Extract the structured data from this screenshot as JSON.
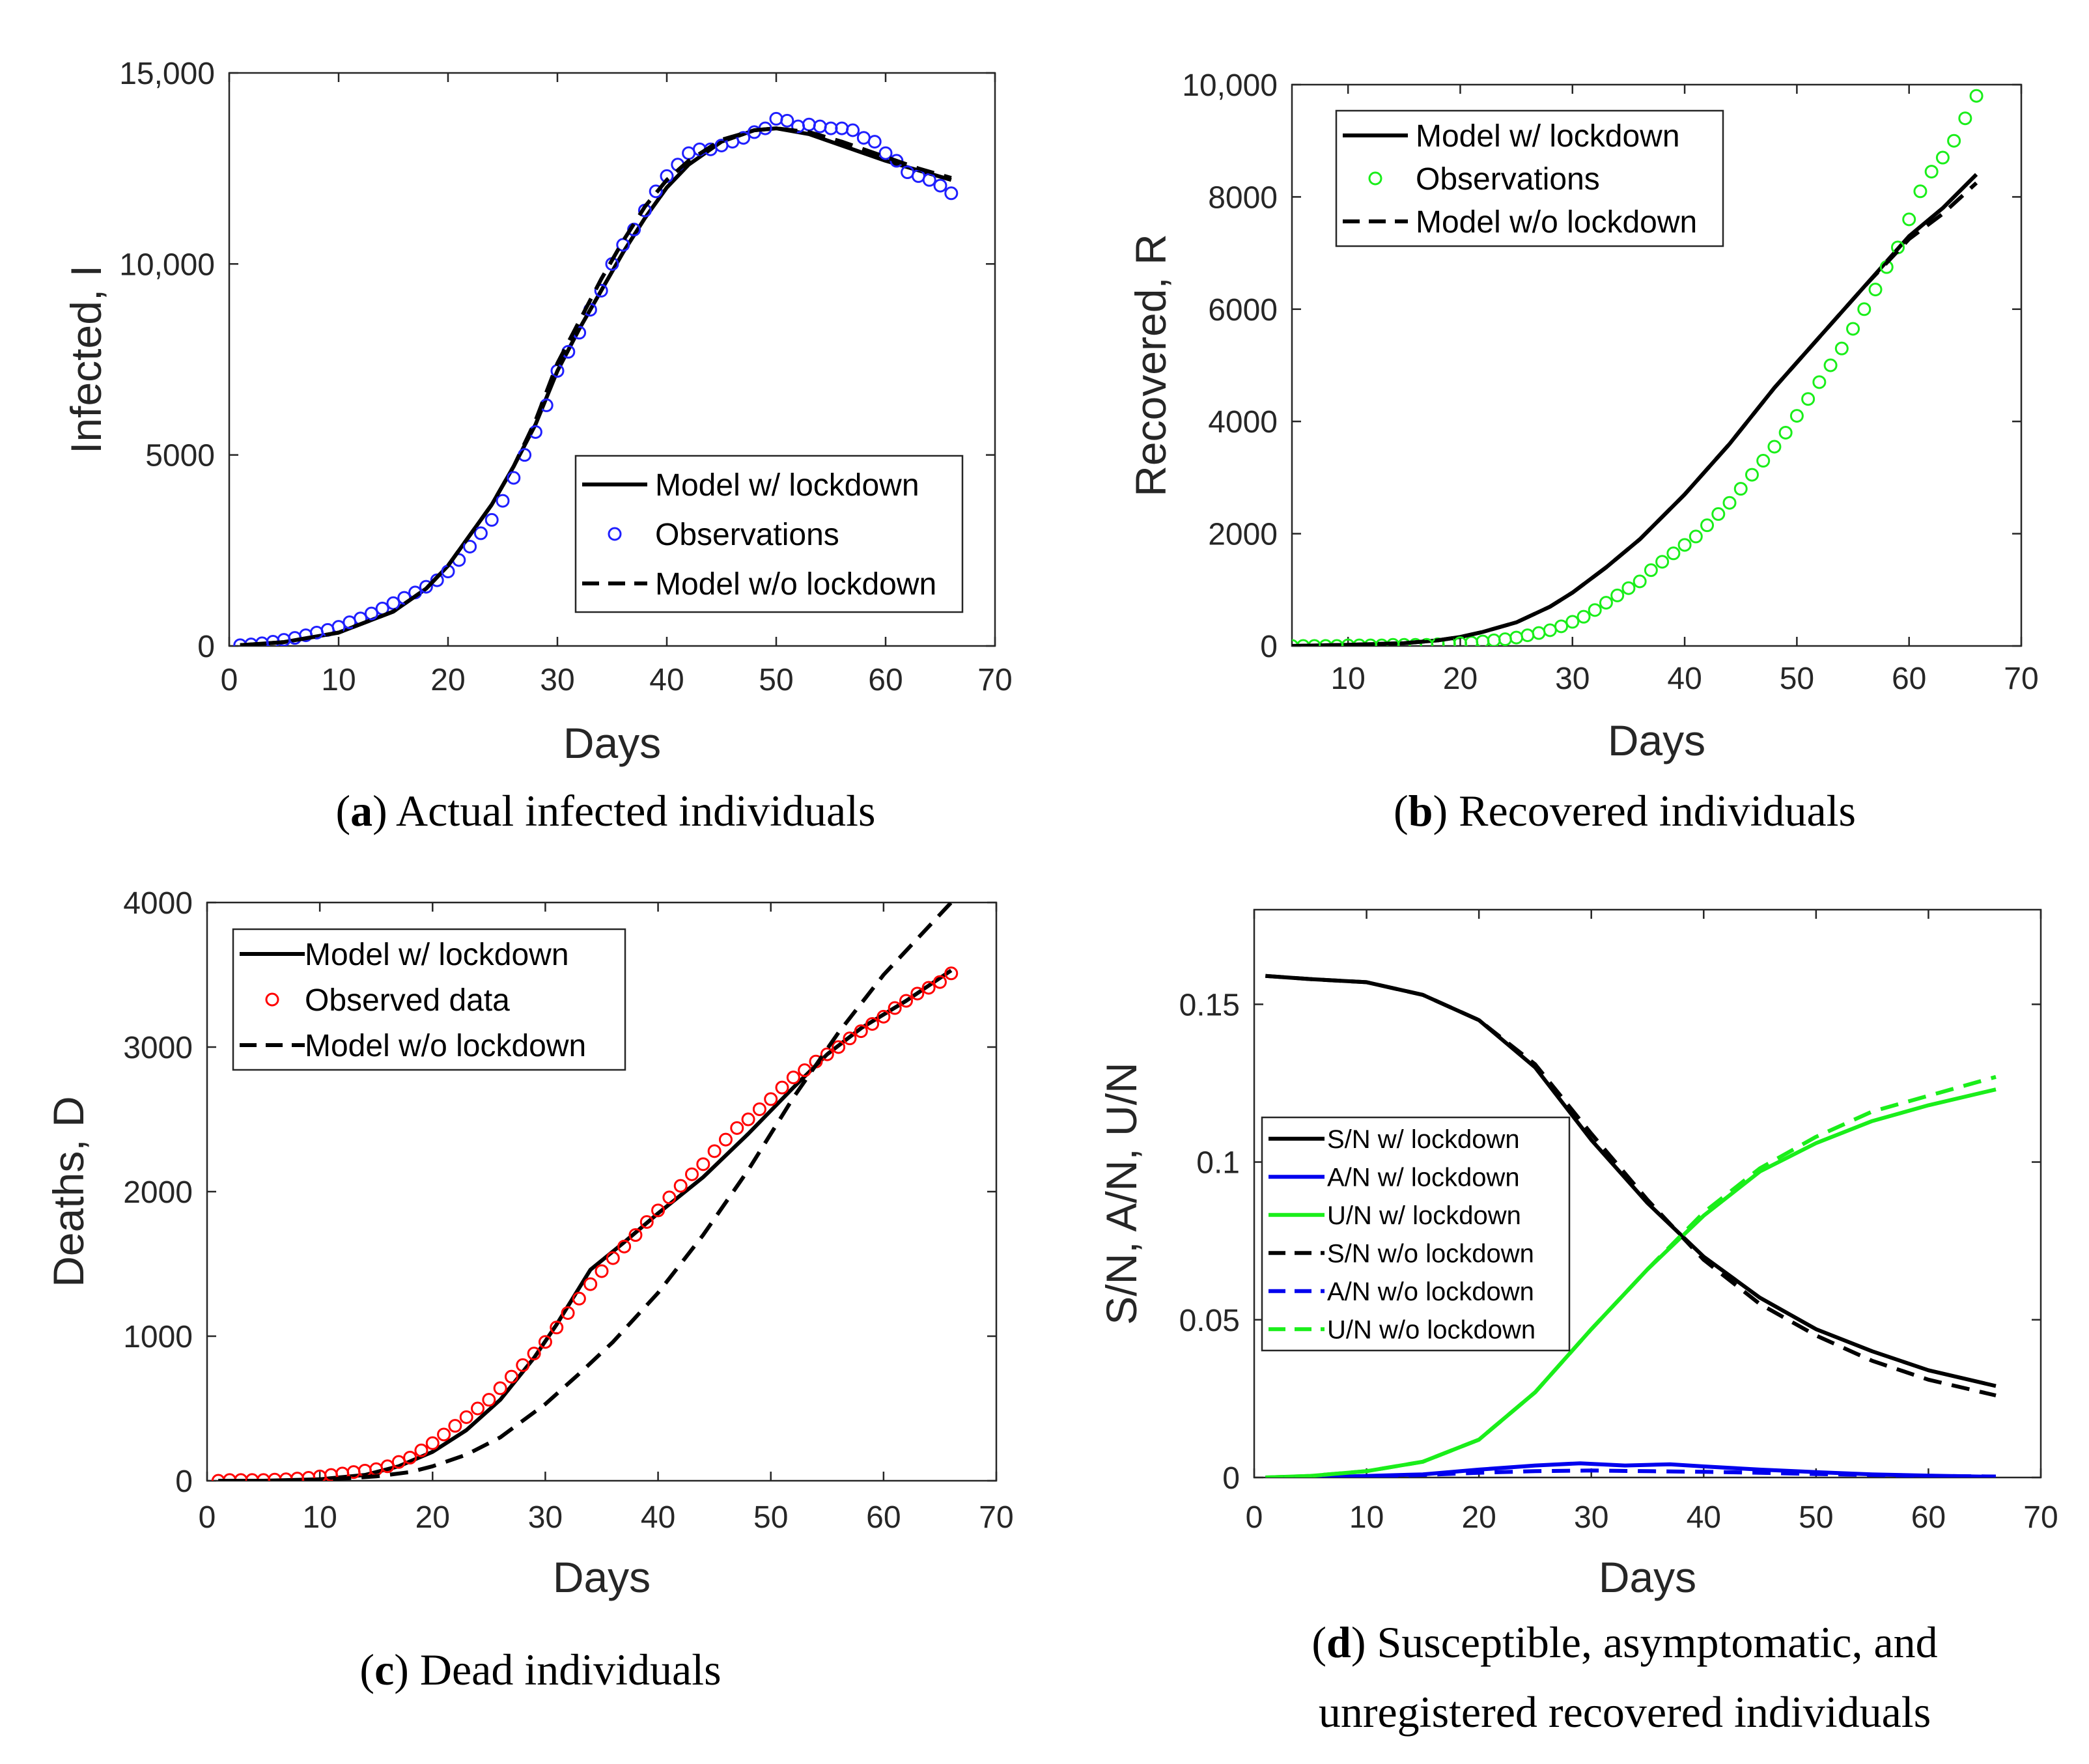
{
  "chart_data": [
    {
      "type": "line",
      "panel": "a",
      "caption_letter": "a",
      "caption_text": ") Actual infected individuals",
      "caption_open": "(",
      "xlabel": "Days",
      "ylabel": "Infected, I",
      "xlim": [
        0,
        70
      ],
      "ylim": [
        0,
        15000
      ],
      "xticks": [
        0,
        10,
        20,
        30,
        40,
        50,
        60,
        70
      ],
      "xtick_labels": [
        "0",
        "10",
        "20",
        "30",
        "40",
        "50",
        "60",
        "70"
      ],
      "yticks": [
        0,
        5000,
        10000,
        15000
      ],
      "ytick_labels": [
        "0",
        "5000",
        "10,000",
        "15,000"
      ],
      "legend_position": "bottom-right",
      "series": [
        {
          "name": "Model w/ lockdown",
          "style": "solid",
          "color": "#000000",
          "x": [
            1,
            5,
            10,
            15,
            18,
            20,
            22,
            24,
            26,
            28,
            30,
            32,
            34,
            36,
            38,
            40,
            42,
            45,
            48,
            50,
            53,
            56,
            60,
            63,
            66
          ],
          "y": [
            20,
            100,
            350,
            900,
            1500,
            2100,
            2900,
            3700,
            4700,
            5800,
            7200,
            8300,
            9300,
            10300,
            11200,
            12000,
            12600,
            13200,
            13500,
            13550,
            13400,
            13100,
            12700,
            12450,
            12200
          ]
        },
        {
          "name": "Observations",
          "style": "circle",
          "color": "#1f1fff",
          "x": [
            1,
            2,
            3,
            4,
            5,
            6,
            7,
            8,
            9,
            10,
            11,
            12,
            13,
            14,
            15,
            16,
            17,
            18,
            19,
            20,
            21,
            22,
            23,
            24,
            25,
            26,
            27,
            28,
            29,
            30,
            31,
            32,
            33,
            34,
            35,
            36,
            37,
            38,
            39,
            40,
            41,
            42,
            43,
            44,
            45,
            46,
            47,
            48,
            49,
            50,
            51,
            52,
            53,
            54,
            55,
            56,
            57,
            58,
            59,
            60,
            61,
            62,
            63,
            64,
            65,
            66
          ],
          "y": [
            20,
            40,
            70,
            110,
            160,
            210,
            280,
            350,
            420,
            500,
            620,
            720,
            850,
            980,
            1120,
            1260,
            1400,
            1550,
            1720,
            1950,
            2250,
            2600,
            2950,
            3300,
            3800,
            4400,
            5000,
            5600,
            6300,
            7200,
            7700,
            8200,
            8800,
            9300,
            10000,
            10500,
            10900,
            11400,
            11900,
            12300,
            12600,
            12900,
            13000,
            13000,
            13100,
            13200,
            13300,
            13450,
            13550,
            13800,
            13750,
            13600,
            13650,
            13600,
            13550,
            13550,
            13500,
            13300,
            13200,
            12900,
            12700,
            12400,
            12300,
            12200,
            12050,
            11850
          ]
        },
        {
          "name": "Model w/o lockdown",
          "style": "dashed",
          "color": "#000000",
          "x": [
            1,
            5,
            10,
            15,
            18,
            20,
            22,
            24,
            26,
            28,
            30,
            32,
            34,
            36,
            38,
            40,
            42,
            45,
            48,
            50,
            53,
            56,
            60,
            63,
            66
          ],
          "y": [
            20,
            100,
            350,
            900,
            1500,
            2100,
            2900,
            3700,
            4700,
            5900,
            7400,
            8500,
            9600,
            10600,
            11500,
            12200,
            12700,
            13250,
            13500,
            13550,
            13450,
            13200,
            12800,
            12500,
            12250
          ]
        }
      ]
    },
    {
      "type": "line",
      "panel": "b",
      "caption_letter": "b",
      "caption_text": ") Recovered individuals",
      "caption_open": "(",
      "xlabel": "Days",
      "ylabel": "Recovered, R",
      "xlim": [
        5,
        70
      ],
      "ylim": [
        0,
        10000
      ],
      "xticks": [
        10,
        20,
        30,
        40,
        50,
        60,
        70
      ],
      "xtick_labels": [
        "10",
        "20",
        "30",
        "40",
        "50",
        "60",
        "70"
      ],
      "yticks": [
        0,
        2000,
        4000,
        6000,
        8000,
        10000
      ],
      "ytick_labels": [
        "0",
        "2000",
        "4000",
        "6000",
        "8000",
        "10,000"
      ],
      "legend_position": "top-left",
      "series": [
        {
          "name": "Model w/ lockdown",
          "style": "solid",
          "color": "#000000",
          "x": [
            5,
            10,
            15,
            18,
            20,
            22,
            25,
            28,
            30,
            33,
            36,
            40,
            44,
            48,
            52,
            56,
            60,
            63,
            66
          ],
          "y": [
            0,
            20,
            50,
            100,
            160,
            250,
            420,
            700,
            950,
            1400,
            1900,
            2700,
            3600,
            4600,
            5500,
            6400,
            7300,
            7800,
            8400
          ]
        },
        {
          "name": "Observations",
          "style": "circle",
          "color": "#1aee1a",
          "x": [
            5,
            6,
            7,
            8,
            9,
            10,
            11,
            12,
            13,
            14,
            15,
            16,
            17,
            18,
            19,
            20,
            21,
            22,
            23,
            24,
            25,
            26,
            27,
            28,
            29,
            30,
            31,
            32,
            33,
            34,
            35,
            36,
            37,
            38,
            39,
            40,
            41,
            42,
            43,
            44,
            45,
            46,
            47,
            48,
            49,
            50,
            51,
            52,
            53,
            54,
            55,
            56,
            57,
            58,
            59,
            60,
            61,
            62,
            63,
            64,
            65,
            66
          ],
          "y": [
            0,
            0,
            0,
            0,
            0,
            10,
            10,
            10,
            10,
            20,
            20,
            20,
            20,
            30,
            40,
            50,
            60,
            80,
            100,
            120,
            150,
            190,
            230,
            280,
            350,
            430,
            520,
            640,
            770,
            900,
            1030,
            1150,
            1350,
            1500,
            1650,
            1800,
            1950,
            2150,
            2350,
            2550,
            2800,
            3050,
            3300,
            3550,
            3800,
            4100,
            4400,
            4700,
            5000,
            5300,
            5650,
            6000,
            6350,
            6750,
            7100,
            7600,
            8100,
            8450,
            8700,
            9000,
            9400,
            9800
          ]
        },
        {
          "name": "Model w/o lockdown",
          "style": "dashed",
          "color": "#000000",
          "x": [
            5,
            10,
            15,
            18,
            20,
            22,
            25,
            28,
            30,
            33,
            36,
            40,
            44,
            48,
            52,
            56,
            60,
            63,
            66
          ],
          "y": [
            0,
            20,
            50,
            100,
            160,
            250,
            420,
            700,
            950,
            1400,
            1900,
            2700,
            3600,
            4600,
            5500,
            6400,
            7250,
            7700,
            8250
          ]
        }
      ]
    },
    {
      "type": "line",
      "panel": "c",
      "caption_letter": "c",
      "caption_text": ") Dead individuals",
      "caption_open": "(",
      "xlabel": "Days",
      "ylabel": "Deaths, D",
      "xlim": [
        0,
        70
      ],
      "ylim": [
        0,
        4000
      ],
      "xticks": [
        0,
        10,
        20,
        30,
        40,
        50,
        60,
        70
      ],
      "xtick_labels": [
        "0",
        "10",
        "20",
        "30",
        "40",
        "50",
        "60",
        "70"
      ],
      "yticks": [
        0,
        1000,
        2000,
        3000,
        4000
      ],
      "ytick_labels": [
        "0",
        "1000",
        "2000",
        "3000",
        "4000"
      ],
      "legend_position": "top-left",
      "series": [
        {
          "name": "Model w/ lockdown",
          "style": "solid",
          "color": "#000000",
          "x": [
            1,
            5,
            10,
            14,
            17,
            20,
            23,
            26,
            29,
            31,
            34,
            37,
            40,
            44,
            48,
            52,
            55,
            58,
            62,
            66
          ],
          "y": [
            0,
            0,
            10,
            40,
            100,
            200,
            350,
            560,
            850,
            1080,
            1460,
            1650,
            1850,
            2100,
            2400,
            2720,
            2950,
            3130,
            3320,
            3530
          ]
        },
        {
          "name": "Observed data",
          "style": "circle",
          "color": "#ff0000",
          "x": [
            1,
            2,
            3,
            4,
            5,
            6,
            7,
            8,
            9,
            10,
            11,
            12,
            13,
            14,
            15,
            16,
            17,
            18,
            19,
            20,
            21,
            22,
            23,
            24,
            25,
            26,
            27,
            28,
            29,
            30,
            31,
            32,
            33,
            34,
            35,
            36,
            37,
            38,
            39,
            40,
            41,
            42,
            43,
            44,
            45,
            46,
            47,
            48,
            49,
            50,
            51,
            52,
            53,
            54,
            55,
            56,
            57,
            58,
            59,
            60,
            61,
            62,
            63,
            64,
            65,
            66
          ],
          "y": [
            0,
            5,
            5,
            5,
            5,
            8,
            10,
            15,
            20,
            30,
            40,
            50,
            60,
            70,
            80,
            100,
            130,
            160,
            210,
            260,
            320,
            380,
            440,
            500,
            560,
            640,
            720,
            800,
            880,
            960,
            1060,
            1160,
            1260,
            1360,
            1450,
            1540,
            1620,
            1700,
            1790,
            1870,
            1960,
            2040,
            2120,
            2190,
            2280,
            2360,
            2440,
            2500,
            2570,
            2640,
            2720,
            2790,
            2840,
            2900,
            2950,
            3000,
            3060,
            3110,
            3160,
            3210,
            3270,
            3320,
            3370,
            3410,
            3450,
            3510
          ]
        },
        {
          "name": "Model w/o lockdown",
          "style": "dashed",
          "color": "#000000",
          "x": [
            1,
            5,
            10,
            15,
            18,
            20,
            23,
            26,
            30,
            33,
            36,
            40,
            44,
            48,
            52,
            56,
            60,
            63,
            66
          ],
          "y": [
            0,
            0,
            5,
            30,
            60,
            100,
            180,
            300,
            530,
            740,
            960,
            1300,
            1700,
            2150,
            2650,
            3100,
            3500,
            3750,
            4000
          ]
        }
      ]
    },
    {
      "type": "line",
      "panel": "d",
      "caption_letter": "d",
      "caption_text": ") Susceptible, asymptomatic, and",
      "caption_line2": "unregistered recovered individuals",
      "caption_open": "(",
      "xlabel": "Days",
      "ylabel": "S/N, A/N, U/N",
      "xlim": [
        0,
        70
      ],
      "ylim": [
        0,
        0.18
      ],
      "xticks": [
        0,
        10,
        20,
        30,
        40,
        50,
        60,
        70
      ],
      "xtick_labels": [
        "0",
        "10",
        "20",
        "30",
        "40",
        "50",
        "60",
        "70"
      ],
      "yticks": [
        0,
        0.05,
        0.1,
        0.15
      ],
      "ytick_labels": [
        "0",
        "0.05",
        "0.1",
        "0.15"
      ],
      "legend_position": "middle-left",
      "series": [
        {
          "name": "S/N w/ lockdown",
          "style": "solid",
          "color": "#000000",
          "x": [
            1,
            5,
            10,
            15,
            20,
            25,
            30,
            35,
            40,
            45,
            50,
            55,
            60,
            66
          ],
          "y": [
            0.159,
            0.158,
            0.157,
            0.153,
            0.145,
            0.13,
            0.107,
            0.087,
            0.07,
            0.057,
            0.047,
            0.04,
            0.034,
            0.029
          ]
        },
        {
          "name": "A/N w/ lockdown",
          "style": "solid",
          "color": "#0000ee",
          "x": [
            1,
            5,
            10,
            15,
            20,
            25,
            29,
            33,
            37,
            40,
            45,
            50,
            55,
            60,
            66
          ],
          "y": [
            0,
            0,
            0.0005,
            0.001,
            0.0025,
            0.0038,
            0.0045,
            0.0038,
            0.0042,
            0.0035,
            0.0025,
            0.0017,
            0.001,
            0.0006,
            0.0002
          ]
        },
        {
          "name": "U/N w/ lockdown",
          "style": "solid",
          "color": "#1aee1a",
          "x": [
            1,
            5,
            10,
            15,
            20,
            25,
            30,
            35,
            40,
            45,
            50,
            55,
            60,
            66
          ],
          "y": [
            0,
            0.0005,
            0.002,
            0.005,
            0.012,
            0.027,
            0.047,
            0.066,
            0.083,
            0.097,
            0.106,
            0.113,
            0.118,
            0.123
          ]
        },
        {
          "name": "S/N w/o lockdown",
          "style": "dashed",
          "color": "#000000",
          "x": [
            1,
            5,
            10,
            15,
            20,
            25,
            30,
            35,
            40,
            45,
            50,
            55,
            60,
            66
          ],
          "y": [
            0.159,
            0.158,
            0.157,
            0.153,
            0.145,
            0.131,
            0.109,
            0.088,
            0.069,
            0.055,
            0.045,
            0.037,
            0.031,
            0.026
          ]
        },
        {
          "name": "A/N w/o lockdown",
          "style": "dashed",
          "color": "#0000ee",
          "x": [
            1,
            5,
            10,
            15,
            20,
            25,
            30,
            35,
            40,
            45,
            50,
            55,
            60,
            66
          ],
          "y": [
            0,
            0,
            0.0003,
            0.0008,
            0.0015,
            0.002,
            0.0022,
            0.002,
            0.0018,
            0.0015,
            0.0011,
            0.0008,
            0.0005,
            0.0003
          ]
        },
        {
          "name": "U/N  w/o lockdown",
          "style": "dashed",
          "color": "#1aee1a",
          "x": [
            1,
            5,
            10,
            15,
            20,
            25,
            30,
            35,
            40,
            45,
            50,
            55,
            60,
            66
          ],
          "y": [
            0,
            0.0005,
            0.002,
            0.005,
            0.012,
            0.027,
            0.047,
            0.066,
            0.084,
            0.098,
            0.108,
            0.116,
            0.121,
            0.127
          ]
        }
      ]
    }
  ]
}
